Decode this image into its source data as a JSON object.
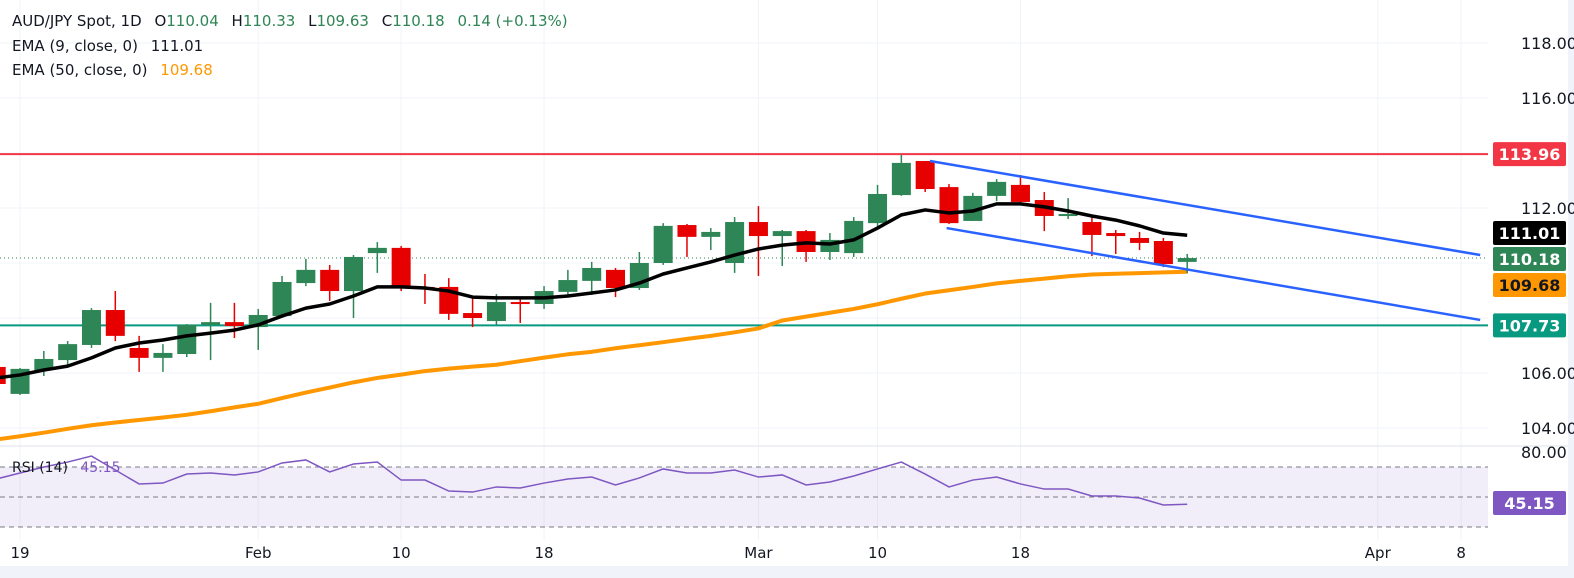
{
  "header": {
    "symbol": "AUD/JPY Spot, 1D",
    "o_label": "O",
    "o_value": "110.04",
    "h_label": "H",
    "h_value": "110.33",
    "l_label": "L",
    "l_value": "109.63",
    "c_label": "C",
    "c_value": "110.18",
    "change": "0.14 (+0.13%)"
  },
  "indicators": {
    "ema9_label": "EMA (9, close, 0)",
    "ema9_value": "111.01",
    "ema50_label": "EMA (50, close, 0)",
    "ema50_value": "109.68",
    "rsi_label": "RSI (14)",
    "rsi_value": "45.15"
  },
  "colors": {
    "up": "#2e8555",
    "down": "#e60000",
    "ema9": "#000000",
    "ema50": "#ff9800",
    "resistance": "#f23645",
    "support": "#089981",
    "channel": "#2962ff",
    "rsi": "#7e57c2"
  },
  "chart_data": {
    "type": "candlestick",
    "price_axis": {
      "ylim": [
        103.3,
        119.5
      ],
      "tick_labels": [
        "118.00",
        "116.00",
        "112.00",
        "106.00",
        "104.00"
      ],
      "ticks": [
        118,
        116,
        112,
        106,
        104
      ],
      "grid_every": 2
    },
    "x_axis": {
      "tick_labels": [
        "19",
        "Feb",
        "10",
        "18",
        "Mar",
        "10",
        "18",
        "Apr",
        "8"
      ],
      "tick_bars": [
        1,
        11,
        17,
        23,
        32,
        37,
        43,
        58,
        61.5
      ]
    },
    "ohlc": [
      [
        106.22,
        106.29,
        105.53,
        105.6
      ],
      [
        105.24,
        106.18,
        105.2,
        106.15
      ],
      [
        106.11,
        106.8,
        105.89,
        106.51
      ],
      [
        106.47,
        107.16,
        106.22,
        107.05
      ],
      [
        107.02,
        108.36,
        106.91,
        108.29
      ],
      [
        108.29,
        108.98,
        107.16,
        107.35
      ],
      [
        106.91,
        107.35,
        106.04,
        106.55
      ],
      [
        106.55,
        107.05,
        106.04,
        106.73
      ],
      [
        106.69,
        107.78,
        106.58,
        107.75
      ],
      [
        107.75,
        108.55,
        106.47,
        107.85
      ],
      [
        107.85,
        108.55,
        107.27,
        107.71
      ],
      [
        107.67,
        108.33,
        106.84,
        108.11
      ],
      [
        108.07,
        109.53,
        108.04,
        109.31
      ],
      [
        109.27,
        110.15,
        109.16,
        109.75
      ],
      [
        109.75,
        109.93,
        108.62,
        108.98
      ],
      [
        108.98,
        110.29,
        108.0,
        110.22
      ],
      [
        110.36,
        110.76,
        109.64,
        110.55
      ],
      [
        110.55,
        110.62,
        108.98,
        109.09
      ],
      [
        109.13,
        109.6,
        108.51,
        109.09
      ],
      [
        109.13,
        109.45,
        107.93,
        108.15
      ],
      [
        108.18,
        108.76,
        107.67,
        108.0
      ],
      [
        107.89,
        108.87,
        107.75,
        108.58
      ],
      [
        108.58,
        108.69,
        107.82,
        108.51
      ],
      [
        108.51,
        109.16,
        108.33,
        108.98
      ],
      [
        108.95,
        109.75,
        108.84,
        109.38
      ],
      [
        109.35,
        110.04,
        108.84,
        109.82
      ],
      [
        109.75,
        109.82,
        108.76,
        109.09
      ],
      [
        109.09,
        110.4,
        109.02,
        110.0
      ],
      [
        110.0,
        111.45,
        109.93,
        111.35
      ],
      [
        111.38,
        111.42,
        110.22,
        110.95
      ],
      [
        110.95,
        111.27,
        110.47,
        111.13
      ],
      [
        110.0,
        111.67,
        109.64,
        111.49
      ],
      [
        111.49,
        112.07,
        109.53,
        110.98
      ],
      [
        110.98,
        111.2,
        109.89,
        111.16
      ],
      [
        111.16,
        111.2,
        110.04,
        110.4
      ],
      [
        110.4,
        111.09,
        110.11,
        110.84
      ],
      [
        110.36,
        111.67,
        110.22,
        111.53
      ],
      [
        111.45,
        112.84,
        111.27,
        112.51
      ],
      [
        112.47,
        113.93,
        112.44,
        113.64
      ],
      [
        113.71,
        113.71,
        112.58,
        112.69
      ],
      [
        112.76,
        112.87,
        111.42,
        111.45
      ],
      [
        111.53,
        112.55,
        111.53,
        112.44
      ],
      [
        112.44,
        113.05,
        112.25,
        112.95
      ],
      [
        112.84,
        113.2,
        112.18,
        112.22
      ],
      [
        112.29,
        112.58,
        111.16,
        111.71
      ],
      [
        111.71,
        112.36,
        111.6,
        111.78
      ],
      [
        111.49,
        111.75,
        110.25,
        111.02
      ],
      [
        111.09,
        111.2,
        110.33,
        110.98
      ],
      [
        110.91,
        111.13,
        110.47,
        110.73
      ],
      [
        110.8,
        110.91,
        109.85,
        109.96
      ],
      [
        110.04,
        110.33,
        109.63,
        110.18
      ]
    ],
    "ema9": [
      105.82,
      105.93,
      106.11,
      106.25,
      106.55,
      106.91,
      107.09,
      107.2,
      107.35,
      107.45,
      107.56,
      107.75,
      108.07,
      108.36,
      108.51,
      108.8,
      109.13,
      109.13,
      109.09,
      108.98,
      108.76,
      108.73,
      108.73,
      108.73,
      108.8,
      108.91,
      109.02,
      109.27,
      109.6,
      109.82,
      110.04,
      110.29,
      110.51,
      110.65,
      110.73,
      110.69,
      110.84,
      111.27,
      111.75,
      111.93,
      111.82,
      111.89,
      112.15,
      112.15,
      112.04,
      111.89,
      111.71,
      111.56,
      111.35,
      111.09,
      111.01
    ],
    "ema50": [
      103.58,
      103.7,
      103.83,
      103.97,
      104.1,
      104.2,
      104.29,
      104.38,
      104.48,
      104.61,
      104.75,
      104.88,
      105.09,
      105.29,
      105.47,
      105.66,
      105.82,
      105.94,
      106.07,
      106.16,
      106.23,
      106.3,
      106.43,
      106.56,
      106.68,
      106.77,
      106.9,
      107.01,
      107.12,
      107.24,
      107.35,
      107.48,
      107.62,
      107.91,
      108.05,
      108.19,
      108.33,
      108.5,
      108.7,
      108.89,
      109.01,
      109.13,
      109.26,
      109.35,
      109.43,
      109.52,
      109.58,
      109.61,
      109.63,
      109.66,
      109.68
    ],
    "horizontal_levels": [
      {
        "price": 113.96,
        "label": "113.96",
        "role": "resistance"
      },
      {
        "price": 107.73,
        "label": "107.73",
        "role": "support"
      }
    ],
    "channel": {
      "upper": [
        [
          39.2,
          113.71
        ],
        [
          62.3,
          110.29
        ]
      ],
      "lower": [
        [
          39.9,
          111.27
        ],
        [
          62.3,
          107.93
        ]
      ]
    },
    "price_tags": {
      "ema9": "111.01",
      "close": "110.18",
      "ema50": "109.68"
    },
    "rsi": {
      "period": 14,
      "tick_labels": [
        "80.00"
      ],
      "levels": [
        70,
        50,
        30
      ],
      "ylim": [
        24,
        81
      ],
      "values": [
        62.0,
        66.0,
        70.0,
        73.3,
        77.3,
        68.0,
        58.7,
        59.3,
        65.3,
        66.0,
        64.7,
        66.7,
        72.7,
        74.7,
        66.7,
        72.0,
        73.3,
        61.3,
        61.3,
        54.0,
        53.3,
        56.7,
        56.0,
        59.3,
        62.0,
        63.3,
        58.0,
        62.7,
        68.7,
        66.0,
        66.0,
        68.0,
        63.3,
        64.7,
        58.0,
        60.0,
        64.0,
        68.7,
        73.3,
        65.3,
        56.7,
        61.3,
        63.3,
        58.7,
        55.3,
        55.3,
        50.7,
        50.7,
        49.3,
        44.7,
        45.15
      ],
      "tag": "45.15"
    }
  }
}
